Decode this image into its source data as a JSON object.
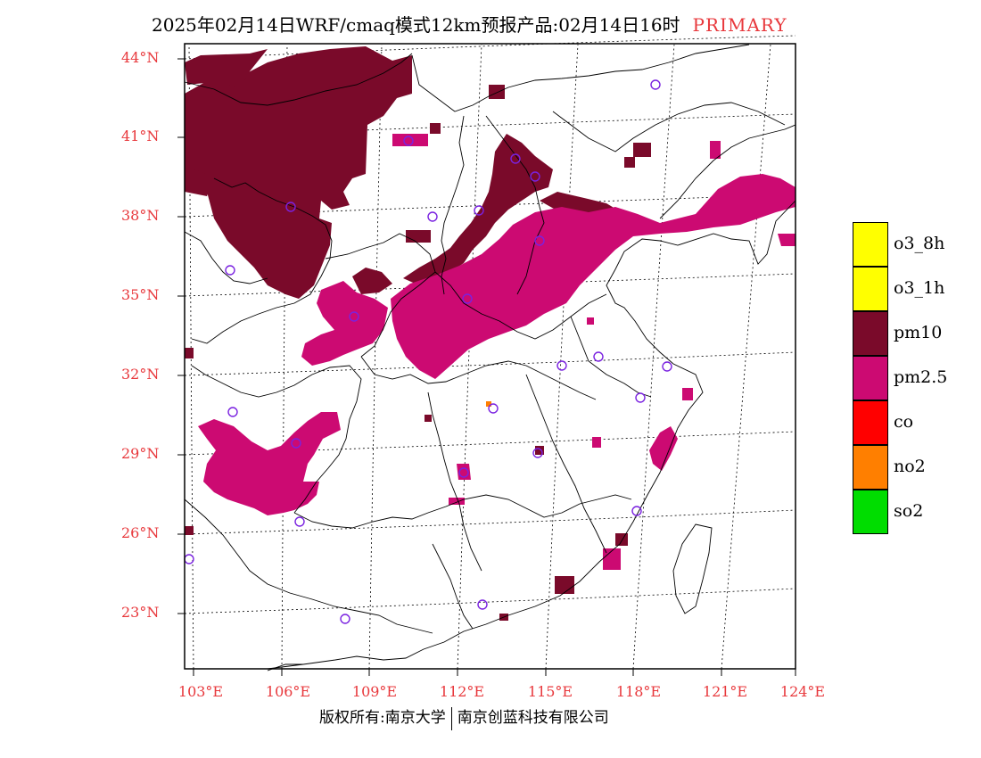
{
  "title": "2025年02月14日WRF/cmaq模式12km预报产品:02月14日16时",
  "title_tag": "PRIMARY",
  "lat_labels": [
    "44°N",
    "41°N",
    "38°N",
    "35°N",
    "32°N",
    "29°N",
    "26°N",
    "23°N"
  ],
  "lon_labels": [
    "103°E",
    "106°E",
    "109°E",
    "112°E",
    "115°E",
    "118°E",
    "121°E",
    "124°E"
  ],
  "legend": [
    {
      "label": "o3_8h",
      "color": "#ffff00"
    },
    {
      "label": "o3_1h",
      "color": "#ffff00"
    },
    {
      "label": "pm10",
      "color": "#7a0a2a"
    },
    {
      "label": "pm2.5",
      "color": "#cc0a72"
    },
    {
      "label": "co",
      "color": "#ff0000"
    },
    {
      "label": "no2",
      "color": "#ff7f00"
    },
    {
      "label": "so2",
      "color": "#00dd00"
    }
  ],
  "footer_left": "版权所有:南京大学",
  "footer_right": "南京创蓝科技有限公司",
  "colors": {
    "accent": "#e8383c",
    "pm10": "#7a0a2a",
    "pm25": "#cc0a72",
    "station": "#7a22e0"
  }
}
